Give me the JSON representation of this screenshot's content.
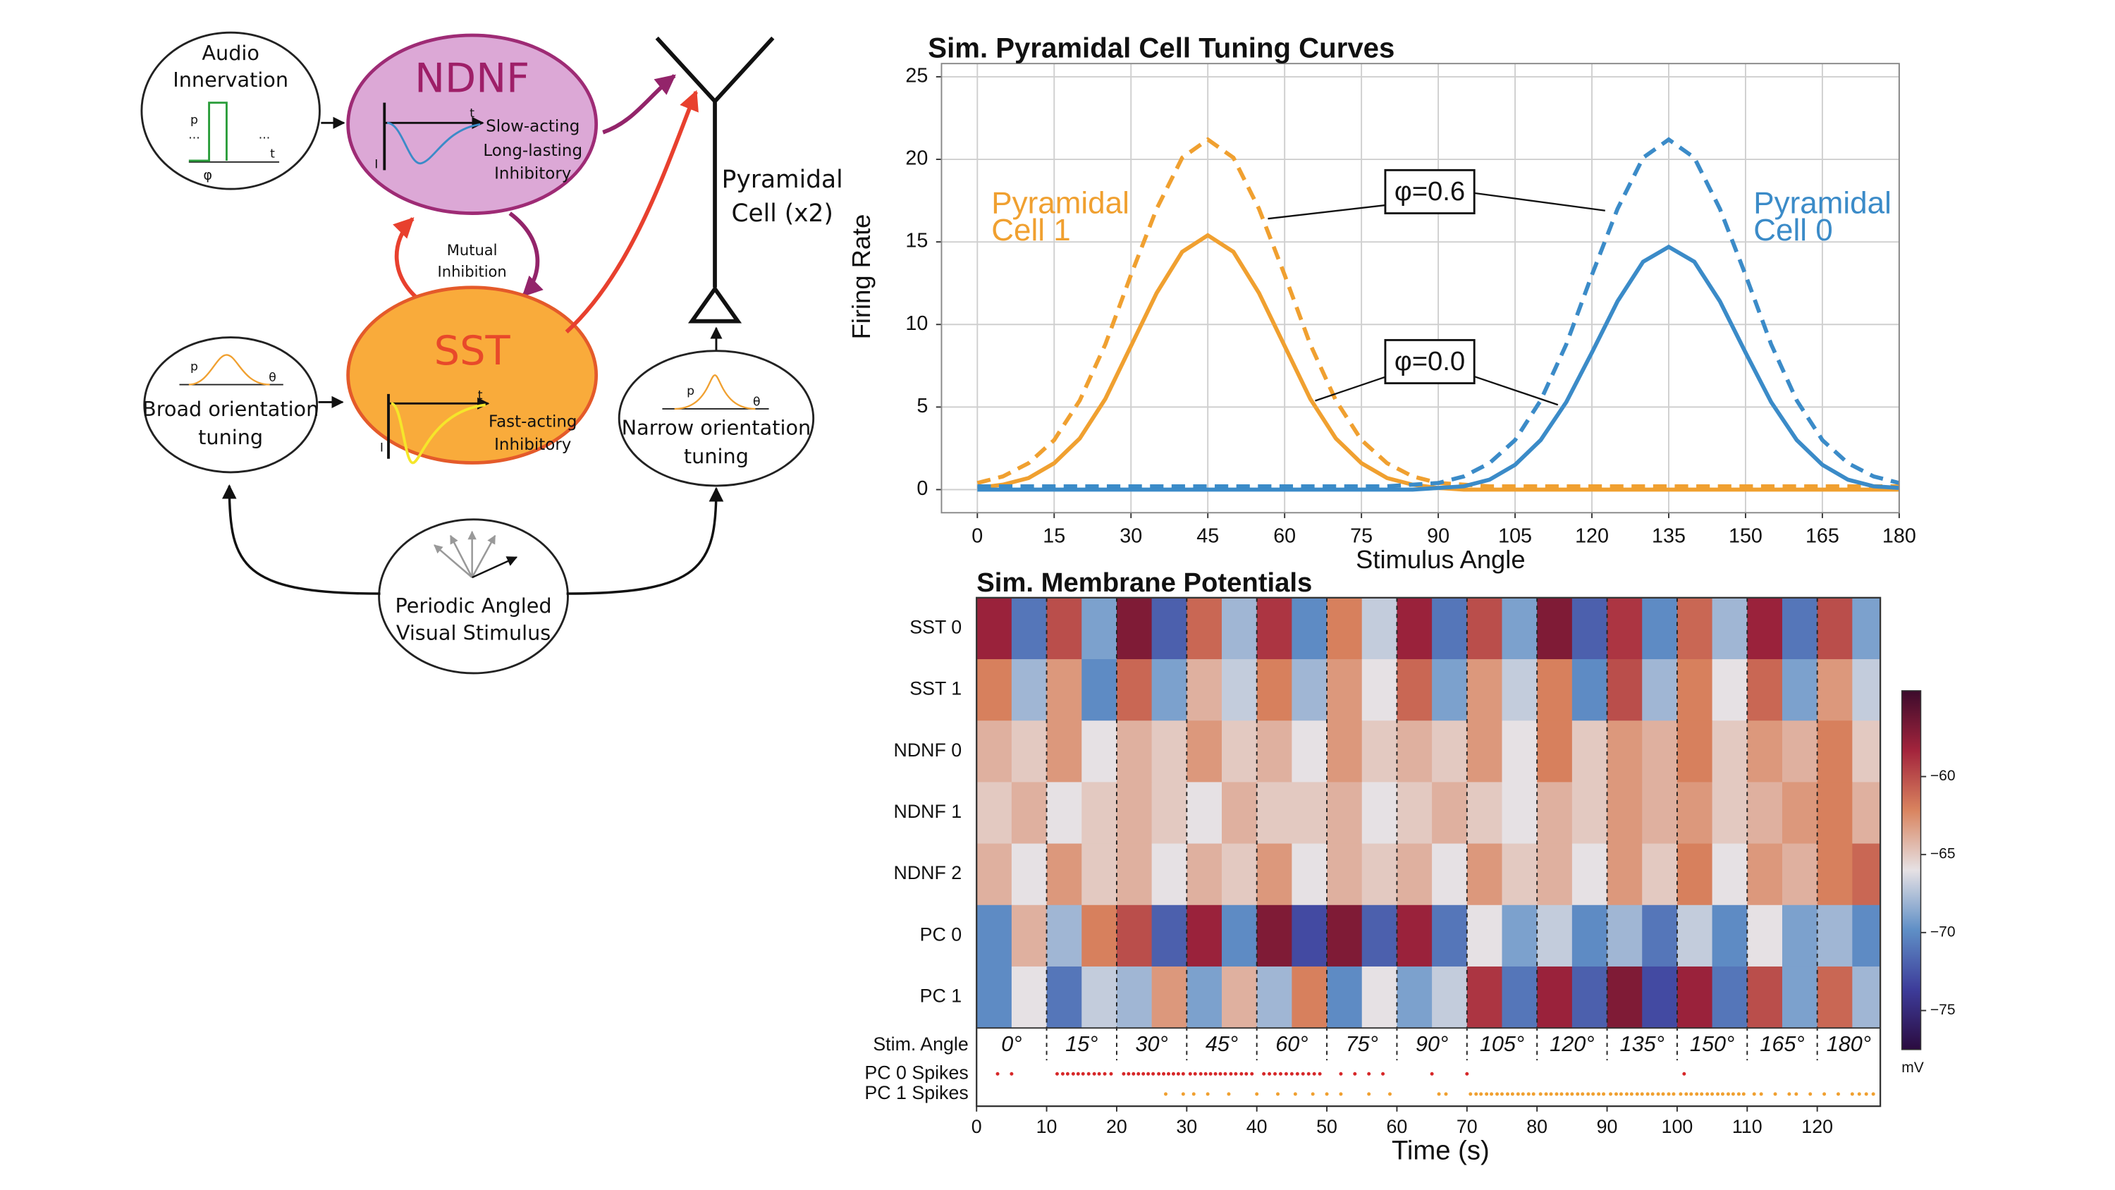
{
  "diagram": {
    "audio": {
      "label": [
        "Audio",
        "Innervation"
      ],
      "axis": [
        "p",
        "t",
        "φ"
      ],
      "ellipsis": "..."
    },
    "ndnf": {
      "title": "NDNF",
      "axis": [
        "t",
        "I"
      ],
      "description": [
        "Slow-acting",
        "Long-lasting",
        "Inhibitory"
      ]
    },
    "mutual": [
      "Mutual",
      "Inhibition"
    ],
    "sst": {
      "title": "SST",
      "axis": [
        "t",
        "I"
      ],
      "description": [
        "Fast-acting",
        "Inhibitory"
      ]
    },
    "pyramidal": [
      "Pyramidal",
      "Cell (x2)"
    ],
    "broad": {
      "label": [
        "Broad orientation",
        "tuning"
      ],
      "axis": [
        "p",
        "θ"
      ]
    },
    "narrow": {
      "label": [
        "Narrow orientation",
        "tuning"
      ],
      "axis": [
        "p",
        "θ"
      ]
    },
    "stimulus": [
      "Periodic Angled",
      "Visual Stimulus"
    ]
  },
  "chart_data": [
    {
      "type": "line",
      "title": "Sim. Pyramidal Cell Tuning Curves",
      "x_label": "Stimulus Angle",
      "y_label": "Firing Rate",
      "x": [
        0,
        5,
        10,
        15,
        20,
        25,
        30,
        35,
        40,
        45,
        50,
        55,
        60,
        65,
        70,
        75,
        80,
        85,
        90,
        95,
        100,
        105,
        110,
        115,
        120,
        125,
        130,
        135,
        140,
        145,
        150,
        155,
        160,
        165,
        170,
        175,
        180
      ],
      "series": [
        {
          "color": "#f0a030",
          "style": "dashed",
          "values": [
            0.4,
            0.8,
            1.6,
            3.0,
            5.4,
            8.8,
            13.0,
            17.0,
            20.1,
            21.2,
            20.1,
            17.0,
            13.0,
            8.8,
            5.4,
            3.0,
            1.6,
            0.8,
            0.4,
            0.3,
            0.2,
            0.2,
            0.2,
            0.2,
            0.2,
            0.2,
            0.2,
            0.2,
            0.2,
            0.2,
            0.2,
            0.2,
            0.2,
            0.2,
            0.2,
            0.2,
            0.2
          ]
        },
        {
          "color": "#f0a030",
          "style": "solid",
          "values": [
            0.1,
            0.3,
            0.7,
            1.6,
            3.1,
            5.5,
            8.7,
            11.9,
            14.4,
            15.4,
            14.4,
            11.9,
            8.7,
            5.5,
            3.1,
            1.6,
            0.7,
            0.3,
            0.1,
            0,
            0,
            0,
            0,
            0,
            0,
            0,
            0,
            0,
            0,
            0,
            0,
            0,
            0,
            0,
            0,
            0,
            0
          ]
        },
        {
          "color": "#3b8bc8",
          "style": "dashed",
          "values": [
            0.2,
            0.2,
            0.2,
            0.2,
            0.2,
            0.2,
            0.2,
            0.2,
            0.2,
            0.2,
            0.2,
            0.2,
            0.2,
            0.2,
            0.2,
            0.2,
            0.2,
            0.3,
            0.4,
            0.8,
            1.6,
            3.0,
            5.4,
            8.8,
            13.0,
            17.0,
            20.1,
            21.2,
            20.1,
            17.0,
            13.0,
            8.8,
            5.4,
            3.0,
            1.6,
            0.8,
            0.4
          ]
        },
        {
          "color": "#3b8bc8",
          "style": "solid",
          "values": [
            0,
            0,
            0,
            0,
            0,
            0,
            0,
            0,
            0,
            0,
            0,
            0,
            0,
            0,
            0,
            0,
            0,
            0,
            0.1,
            0.2,
            0.6,
            1.5,
            3.0,
            5.3,
            8.3,
            11.4,
            13.8,
            14.7,
            13.8,
            11.4,
            8.3,
            5.3,
            3.0,
            1.5,
            0.6,
            0.2,
            0.1
          ]
        }
      ],
      "xlim": [
        -7,
        180
      ],
      "ylim": [
        -1.4,
        25.8
      ],
      "xticks": [
        0,
        15,
        30,
        45,
        60,
        75,
        90,
        105,
        120,
        135,
        150,
        165,
        180
      ],
      "yticks": [
        0,
        5,
        10,
        15,
        20,
        25
      ],
      "grid": true,
      "annotations": [
        "φ=0.6",
        "φ=0.0"
      ],
      "curve_labels": [
        [
          "Pyramidal",
          "Cell 1"
        ],
        [
          "Pyramidal",
          "Cell 0"
        ]
      ]
    },
    {
      "type": "heatmap",
      "title": "Sim. Membrane Potentials",
      "x_label": "Time (s)",
      "rows": [
        "SST 0",
        "SST 1",
        "NDNF 0",
        "NDNF 1",
        "NDNF 2",
        "PC 0",
        "PC 1"
      ],
      "x_edges": [
        0,
        5,
        10,
        15,
        20,
        25,
        30,
        35,
        40,
        45,
        50,
        55,
        60,
        65,
        70,
        75,
        80,
        85,
        90,
        95,
        100,
        105,
        110,
        115,
        120,
        125,
        130
      ],
      "values": [
        [
          -58,
          -71,
          -60,
          -69,
          -57,
          -72,
          -61,
          -68,
          -59,
          -70,
          -62,
          -67,
          -58,
          -71,
          -60,
          -69,
          -57,
          -72,
          -59,
          -70,
          -61,
          -68,
          -58,
          -71,
          -60,
          -69
        ],
        [
          -62,
          -68,
          -63,
          -70,
          -61,
          -69,
          -64,
          -67,
          -62,
          -68,
          -63,
          -66,
          -61,
          -69,
          -63,
          -67,
          -62,
          -70,
          -60,
          -68,
          -62,
          -66,
          -61,
          -69,
          -63,
          -67
        ],
        [
          -64,
          -65,
          -63,
          -66,
          -64,
          -65,
          -63,
          -65,
          -64,
          -66,
          -63,
          -65,
          -64,
          -65,
          -63,
          -66,
          -62,
          -65,
          -63,
          -64,
          -62,
          -65,
          -63,
          -64,
          -62,
          -65
        ],
        [
          -65,
          -64,
          -66,
          -65,
          -64,
          -65,
          -66,
          -64,
          -65,
          -65,
          -64,
          -66,
          -65,
          -64,
          -65,
          -66,
          -64,
          -65,
          -63,
          -64,
          -63,
          -65,
          -64,
          -63,
          -62,
          -64
        ],
        [
          -64,
          -66,
          -63,
          -65,
          -64,
          -66,
          -64,
          -65,
          -63,
          -66,
          -64,
          -65,
          -64,
          -66,
          -63,
          -65,
          -64,
          -66,
          -63,
          -65,
          -62,
          -66,
          -63,
          -64,
          -62,
          -61
        ],
        [
          -70,
          -64,
          -68,
          -62,
          -60,
          -72,
          -58,
          -70,
          -57,
          -73,
          -57,
          -72,
          -58,
          -71,
          -66,
          -69,
          -67,
          -70,
          -68,
          -71,
          -67,
          -70,
          -66,
          -69,
          -68,
          -70
        ],
        [
          -70,
          -66,
          -71,
          -67,
          -68,
          -63,
          -69,
          -64,
          -68,
          -62,
          -70,
          -66,
          -69,
          -67,
          -59,
          -71,
          -58,
          -72,
          -57,
          -73,
          -58,
          -71,
          -60,
          -69,
          -61,
          -68
        ]
      ],
      "xlim": [
        0,
        129
      ],
      "xticks": [
        0,
        10,
        20,
        30,
        40,
        50,
        60,
        70,
        80,
        90,
        100,
        110,
        120
      ],
      "clim": [
        -77.5,
        -54.5
      ],
      "colormap": [
        "#2b0b3f",
        "#3d3c9a",
        "#5f8fc6",
        "#e6e1e4",
        "#d9845f",
        "#a3243c",
        "#3c0b2c"
      ],
      "colorbar_ticks": [
        {
          "value": -75,
          "label": "−75"
        },
        {
          "value": -70,
          "label": "−70"
        },
        {
          "value": -65,
          "label": "−65"
        },
        {
          "value": -60,
          "label": "−60"
        }
      ],
      "colorbar_label": "mV",
      "stim_angle": {
        "label": "Stim. Angle",
        "boundaries": [
          10,
          20,
          30,
          40,
          50,
          60,
          70,
          80,
          90,
          100,
          110,
          120
        ],
        "labels": [
          "0°",
          "15°",
          "30°",
          "45°",
          "60°",
          "75°",
          "90°",
          "105°",
          "120°",
          "135°",
          "150°",
          "165°",
          "180°"
        ]
      },
      "spikes": [
        {
          "name": "PC 0 Spikes",
          "color": "#d62728",
          "times": [
            3,
            5,
            11.5,
            12.3,
            13,
            13.8,
            14.5,
            15.2,
            16,
            16.8,
            17.5,
            18.3,
            19.2,
            21,
            21.7,
            22.4,
            23.1,
            23.8,
            24.5,
            25.2,
            26,
            26.7,
            27.4,
            28.1,
            28.8,
            29.5,
            30.5,
            31.2,
            32,
            32.7,
            33.4,
            34.1,
            34.8,
            35.5,
            36.3,
            37,
            37.8,
            38.5,
            39.3,
            41,
            41.8,
            42.6,
            43.4,
            44.2,
            45,
            45.8,
            46.6,
            47.4,
            48.2,
            49,
            52,
            54,
            56,
            58,
            65,
            70,
            101
          ]
        },
        {
          "name": "PC 1 Spikes",
          "color": "#f0a030",
          "times": [
            27,
            29.5,
            31,
            33,
            36,
            40,
            43,
            45.5,
            48,
            50,
            52,
            56,
            59,
            66,
            67,
            70.5,
            71.3,
            72,
            72.8,
            73.5,
            74.3,
            75,
            75.8,
            76.5,
            77.3,
            78,
            78.8,
            79.5,
            80.5,
            81.3,
            82,
            82.8,
            83.5,
            84.3,
            85,
            85.8,
            86.5,
            87.3,
            88,
            88.8,
            89.5,
            90.5,
            91.3,
            92,
            92.8,
            93.5,
            94.3,
            95,
            95.8,
            96.5,
            97.3,
            98,
            98.8,
            99.5,
            100.5,
            101.3,
            102,
            102.8,
            103.5,
            104.3,
            105,
            105.8,
            106.5,
            107.3,
            108,
            108.8,
            109.5,
            111,
            112,
            114,
            116,
            117,
            119,
            121,
            123,
            125,
            126,
            127,
            128
          ]
        }
      ]
    }
  ]
}
